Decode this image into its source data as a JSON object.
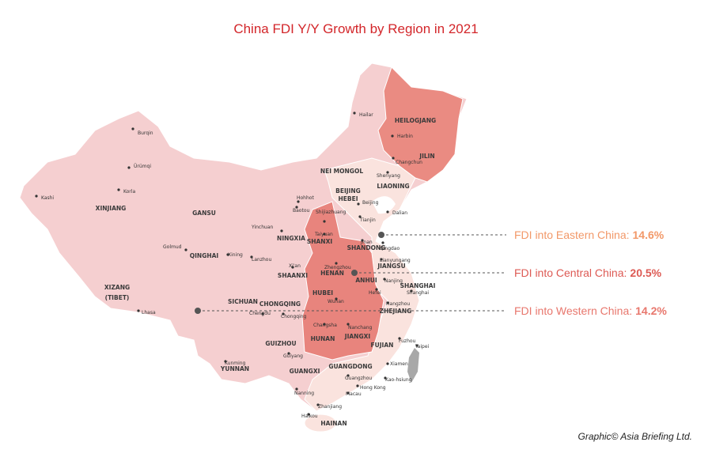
{
  "title": "China FDI Y/Y Growth by Region in 2021",
  "provinces": [
    "HEILOGJANG",
    "JILIN",
    "LIAONING",
    "NEI MONGOL",
    "XINJIANG",
    "GANSU",
    "QINGHAI",
    "XIZANG",
    "(TIBET)",
    "NINGXIA",
    "SHANXI",
    "HEBEI",
    "BEIJING",
    "SHANDONG",
    "HENAN",
    "JIANGSU",
    "SHAANXI",
    "ANHUI",
    "SHANGHAI",
    "SICHUAN",
    "CHONGQING",
    "HUBEI",
    "ZHEJIANG",
    "HUNAN",
    "JIANGXI",
    "FUJIAN",
    "GUIZHOU",
    "YUNNAN",
    "GUANGXI",
    "GUANGDONG",
    "HAINAN"
  ],
  "cities": [
    "Hailar",
    "Harbin",
    "Changchun",
    "Shenyang",
    "Dalian",
    "Burqin",
    "Ürümqi",
    "Korla",
    "Kashi",
    "Hohhot",
    "Baotou",
    "Beijing",
    "Tianjin",
    "Shijiazhuang",
    "Taiyuan",
    "Yinchuan",
    "Jinan",
    "Qingdao",
    "Golmud",
    "Xining",
    "Lanzhou",
    "Xi'an",
    "Zhengzhou",
    "Lianyungang",
    "Nanjing",
    "Hefei",
    "Shanghai",
    "Wuhan",
    "Hangzhou",
    "Lhasa",
    "Chengdu",
    "Chongqing",
    "Changsha",
    "Nanchang",
    "Fuzhou",
    "Taipei",
    "Kunming",
    "Guiyang",
    "Xiamen",
    "Kao-hsiung",
    "Guangzhou",
    "Hong Kong",
    "Macau",
    "Nanning",
    "Zhanjiang",
    "Haikou"
  ],
  "callouts": [
    {
      "label": "FDI into Eastern China:",
      "value": "14.6%"
    },
    {
      "label": "FDI into Central China:",
      "value": "20.5%"
    },
    {
      "label": "FDI into Western China:",
      "value": "14.2%"
    }
  ],
  "credit": "Graphic© Asia Briefing Ltd."
}
